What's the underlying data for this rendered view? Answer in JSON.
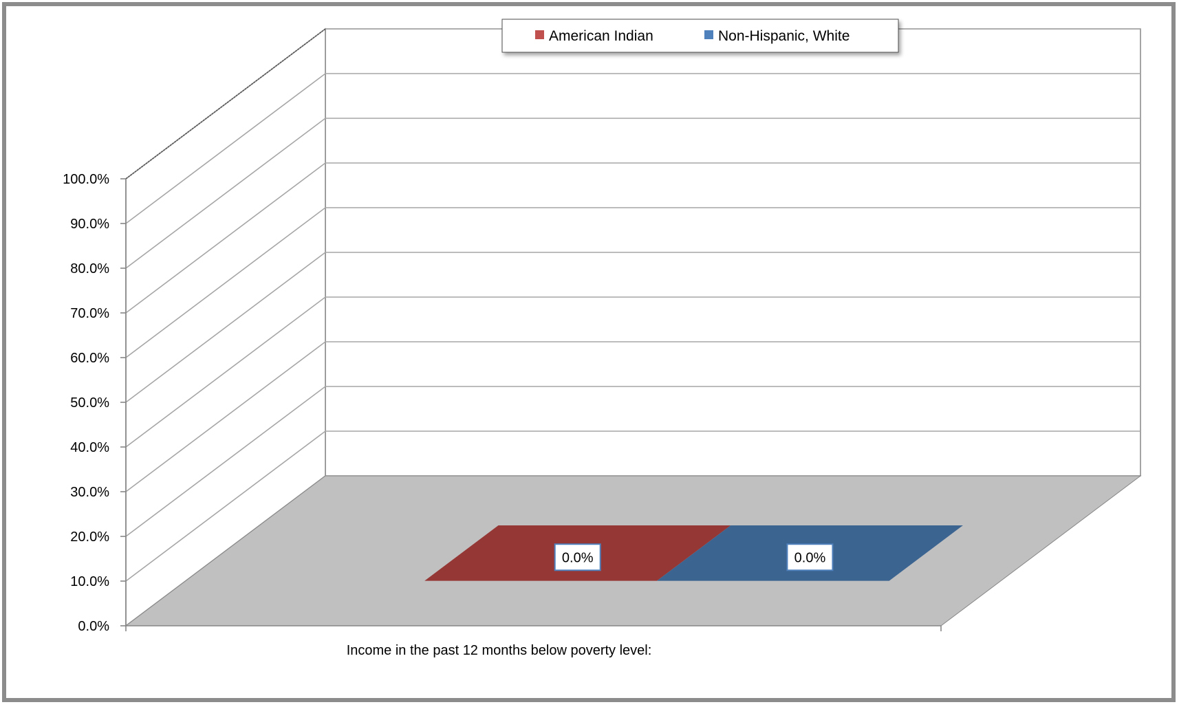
{
  "chart_data": {
    "type": "bar",
    "title": "",
    "xlabel": "",
    "ylabel": "",
    "categories": [
      "Income in the past 12 months below poverty level:"
    ],
    "series": [
      {
        "name": "American Indian",
        "values": [
          0.0
        ],
        "data_label": "0.0%"
      },
      {
        "name": "Non-Hispanic, White",
        "values": [
          0.0
        ],
        "data_label": "0.0%"
      }
    ],
    "ylim": [
      0,
      100
    ],
    "yticks": [
      0,
      10,
      20,
      30,
      40,
      50,
      60,
      70,
      80,
      90,
      100
    ],
    "ytick_labels": [
      "0.0%",
      "10.0%",
      "20.0%",
      "30.0%",
      "40.0%",
      "50.0%",
      "60.0%",
      "70.0%",
      "80.0%",
      "90.0%",
      "100.0%"
    ],
    "grid": true,
    "three_d": true,
    "legend": {
      "position": "top",
      "entries": [
        "American Indian",
        "Non-Hispanic, White"
      ]
    },
    "colors": {
      "American Indian": "#c0504d",
      "Non-Hispanic, White": "#4f81bd",
      "American Indian top": "#953735",
      "Non-Hispanic, White top": "#3b6491",
      "floor": "#c0c0c0",
      "gridline": "#a6a6a6",
      "wall": "#ffffff",
      "axis": "#868686",
      "frame": "#8c8c8c",
      "label_border": "#4f81bd"
    }
  }
}
